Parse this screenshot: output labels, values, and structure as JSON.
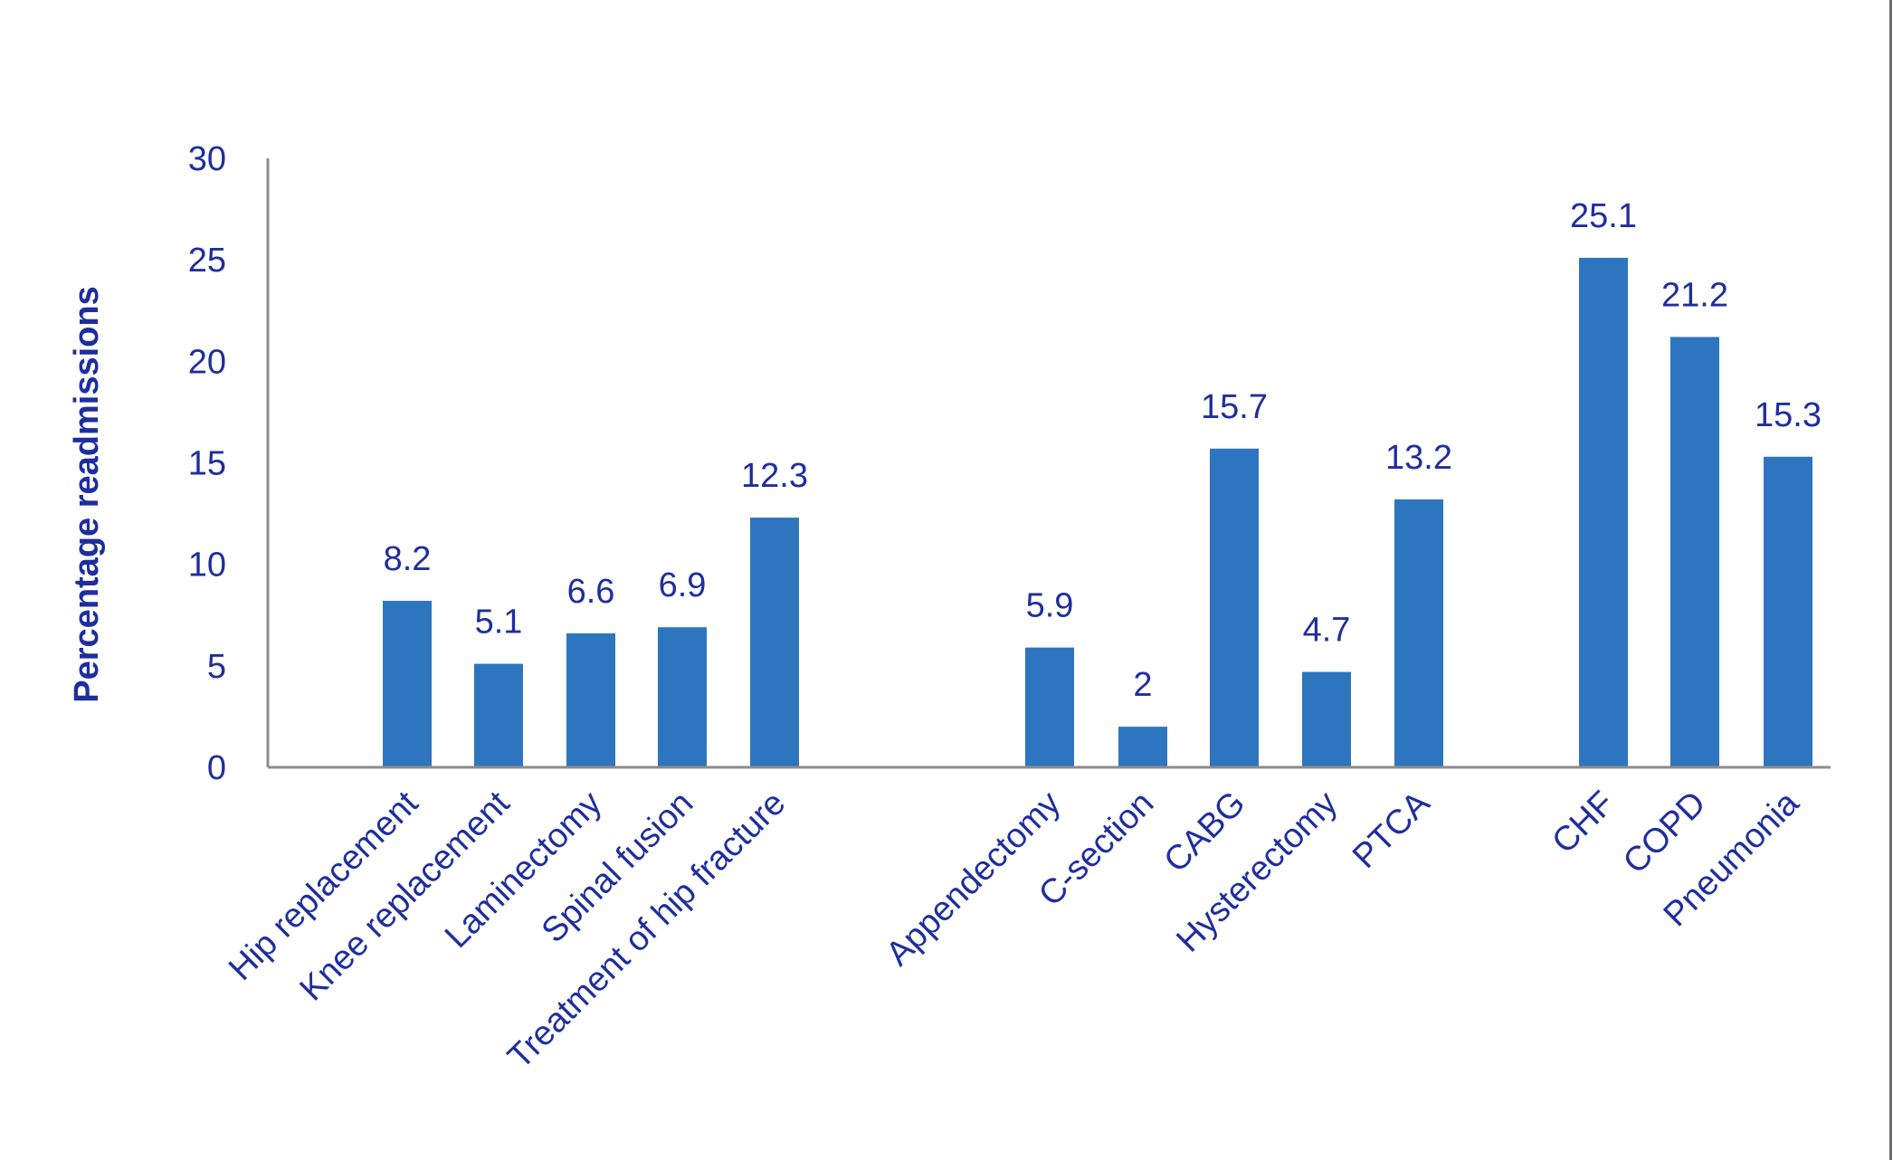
{
  "chart_data": {
    "type": "bar",
    "title": "",
    "xlabel": "",
    "ylabel": "Percentage readmissions",
    "ylim": [
      0,
      30
    ],
    "yticks": [
      "0",
      "5",
      "10",
      "15",
      "20",
      "25",
      "30"
    ],
    "grid": false,
    "legend": "none",
    "bar_color": "#2E75C0",
    "text_color": "#1F2E9C",
    "categories": [
      "Hip replacement",
      "Knee replacement",
      "Laminectomy",
      "Spinal fusion",
      "Treatment of hip fracture",
      "Appendectomy",
      "C-section",
      "CABG",
      "Hysterectomy",
      "PTCA",
      "CHF",
      "COPD",
      "Pneumonia"
    ],
    "values": [
      8.2,
      5.1,
      6.6,
      6.9,
      12.3,
      5.9,
      2,
      15.7,
      4.7,
      13.2,
      25.1,
      21.2,
      15.3
    ],
    "value_labels": [
      "8.2",
      "5.1",
      "6.6",
      "6.9",
      "12.3",
      "5.9",
      "2",
      "15.7",
      "4.7",
      "13.2",
      "25.1",
      "21.2",
      "15.3"
    ]
  }
}
